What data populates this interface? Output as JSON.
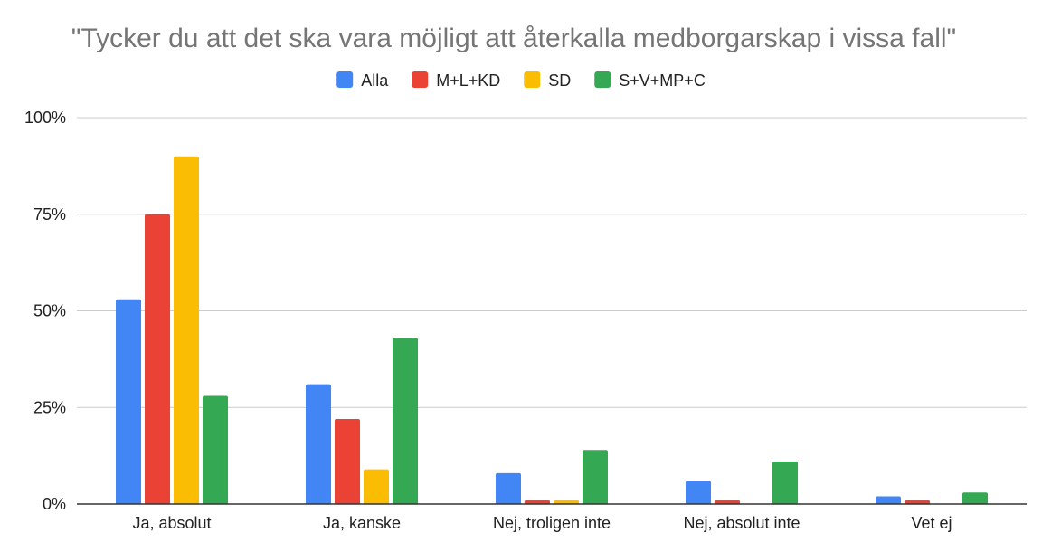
{
  "chart_data": {
    "type": "bar",
    "title": "\"Tycker du att det ska vara möjligt att återkalla medborgarskap i vissa fall\"",
    "xlabel": "",
    "ylabel": "",
    "categories": [
      "Ja, absolut",
      "Ja, kanske",
      "Nej, troligen inte",
      "Nej, absolut inte",
      "Vet ej"
    ],
    "series": [
      {
        "name": "Alla",
        "color": "#4285f4",
        "values": [
          53,
          31,
          8,
          6,
          2
        ]
      },
      {
        "name": "M+L+KD",
        "color": "#ea4335",
        "values": [
          75,
          22,
          1,
          1,
          1
        ]
      },
      {
        "name": "SD",
        "color": "#fbbc04",
        "values": [
          90,
          9,
          1,
          0,
          0
        ]
      },
      {
        "name": "S+V+MP+C",
        "color": "#34a853",
        "values": [
          28,
          43,
          14,
          11,
          3
        ]
      }
    ],
    "ylim": [
      0,
      100
    ],
    "yticks": [
      0,
      25,
      50,
      75,
      100
    ],
    "ytick_labels": [
      "0%",
      "25%",
      "50%",
      "75%",
      "100%"
    ],
    "grid": true,
    "legend_position": "top"
  }
}
